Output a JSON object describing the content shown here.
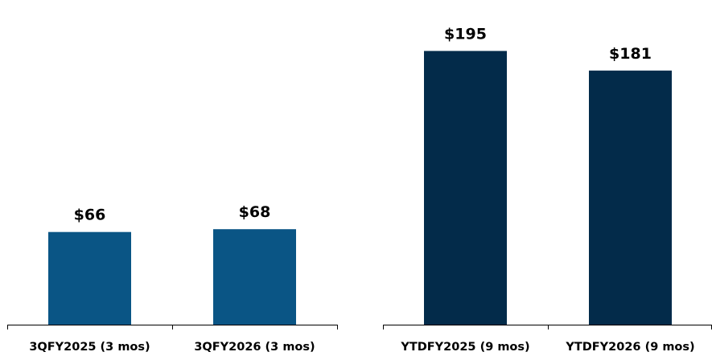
{
  "chart_data": [
    {
      "type": "bar",
      "title": "",
      "xlabel": "",
      "ylabel": "",
      "categories": [
        "3QFY2025 (3 mos)",
        "3QFY2026 (3 mos)"
      ],
      "values": [
        66,
        68
      ],
      "value_labels": [
        "$66",
        "$68"
      ],
      "ylim": [
        0,
        210
      ],
      "grid": false,
      "legend": "none",
      "bar_color": "#0a5585"
    },
    {
      "type": "bar",
      "title": "",
      "xlabel": "",
      "ylabel": "",
      "categories": [
        "YTDFY2025 (9 mos)",
        "YTDFY2026 (9 mos)"
      ],
      "values": [
        195,
        181
      ],
      "value_labels": [
        "$195",
        "$181"
      ],
      "ylim": [
        0,
        210
      ],
      "grid": false,
      "legend": "none",
      "bar_color": "#032b4a"
    }
  ]
}
